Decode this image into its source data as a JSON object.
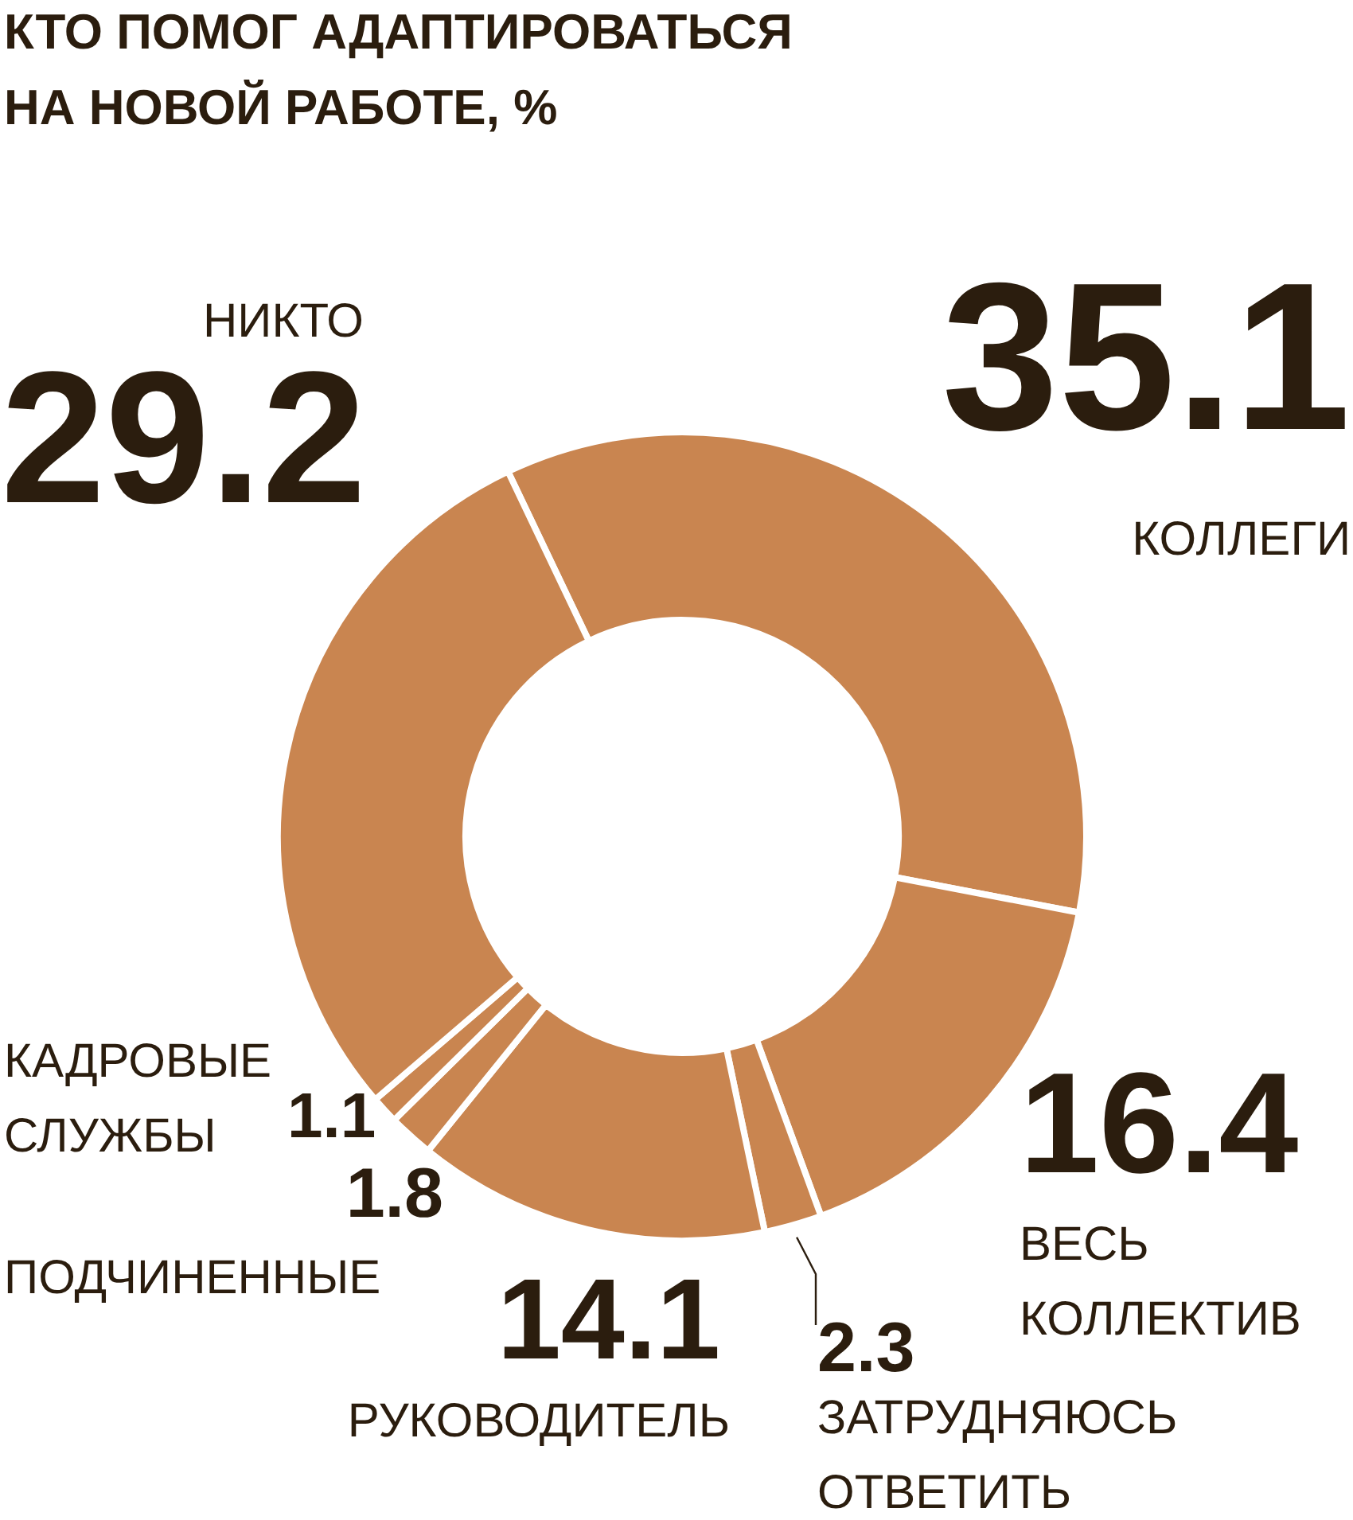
{
  "chart_data": {
    "type": "donut",
    "title": "КТО ПОМОГ АДАПТИРОВАТЬСЯ\nНА НОВОЙ РАБОТЕ, %",
    "categories": [
      "КОЛЛЕГИ",
      "ВЕСЬ КОЛЛЕКТИВ",
      "ЗАТРУДНЯЮСЬ ОТВЕТИТЬ",
      "РУКОВОДИТЕЛЬ",
      "ПОДЧИНЕННЫЕ",
      "КАДРОВЫЕ СЛУЖБЫ",
      "НИКТО"
    ],
    "values": [
      35.1,
      16.4,
      2.3,
      14.1,
      1.8,
      1.1,
      29.2
    ],
    "colors": [
      "#c98550",
      "#c98550",
      "#c98550",
      "#c98550",
      "#c98550",
      "#c98550",
      "#c98550"
    ],
    "data_labels": true
  }
}
